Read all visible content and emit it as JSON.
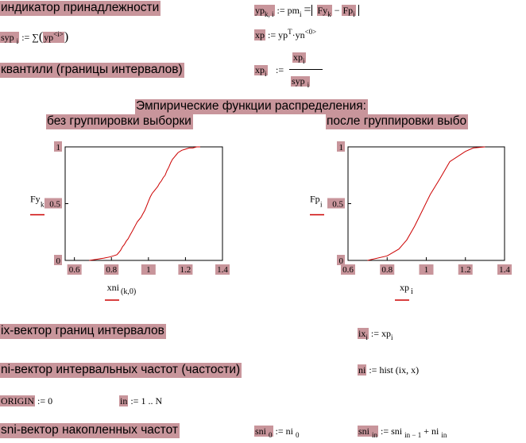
{
  "labels": {
    "indicator": "индикатор принадлежности",
    "quantiles": "квантили (границы интервалов)",
    "emp_title": "Эмпирические функции распределения:",
    "no_group": "без группировки выборки",
    "after_group": "после группировки выбо",
    "ix_vec": "ix-вектор границ интервалов",
    "ni_vec": "ni-вектор интервальных частот (частости)",
    "sni_vec": "sni-вектор накопленных частот"
  },
  "formulas": {
    "yp_name": "yp",
    "yp_sub": "k, i",
    "yp_rhs1": ":= pm",
    "yp_rhs_sub": "i",
    "yp_abs_a": "Fy",
    "yp_abs_a_sub": "k",
    "yp_minus": "−",
    "yp_abs_b": "Fp",
    "yp_abs_b_sub": "i",
    "syp_name": "syp",
    "syp_sub": "i",
    "syp_rhs": ":= ∑",
    "syp_arg": "yp",
    "syp_arg_sup": "<i>",
    "xp_name": "xp",
    "xp_rhs": ":= yp",
    "xp_sup": "T",
    "xp_rest": "·yn",
    "xp_rest_sup": "<0>",
    "xpi_name": "xp",
    "xpi_sub": "i",
    "xpi_assign": ":=",
    "xpi_num": "xp",
    "xpi_num_sub": "i",
    "xpi_den": "syp",
    "xpi_den_sub": "i",
    "ix_name": "ix",
    "ix_sub": "i",
    "ix_rhs": ":= xp",
    "ix_rhs_sub": "i",
    "ni_name": "ni",
    "ni_rhs": ":= hist",
    "ni_args": "(ix, x)",
    "origin_name": "ORIGIN",
    "origin_rhs": ":= 0",
    "in_name": "in",
    "in_rhs": ":= 1 .. N",
    "sni0_name": "sni",
    "sni0_sub": "0",
    "sni0_rhs": ":= ni",
    "sni0_rhs_sub": "0",
    "sniin_name": "sni",
    "sniin_sub": "in",
    "sniin_rhs": ":= sni",
    "sniin_rhs_sub": "in − 1",
    "sniin_plus": "+ ni",
    "sniin_plus_sub": "in"
  },
  "chart_data": [
    {
      "type": "line",
      "title": "",
      "xlabel": "xni",
      "xlabel_sub": "(k,0)",
      "ylabel": "Fy",
      "ylabel_sub": "k",
      "xlim": [
        0.55,
        1.4
      ],
      "ylim": [
        0,
        1
      ],
      "x_ticks": [
        "0.6",
        "0.8",
        "1",
        "1.2",
        "1.4"
      ],
      "y_ticks": [
        "0",
        "0.5",
        "1"
      ],
      "color": "#cc0000",
      "series": [
        {
          "x": [
            0.68,
            0.72,
            0.76,
            0.79,
            0.81,
            0.83,
            0.84,
            0.85,
            0.86,
            0.87,
            0.88,
            0.89,
            0.9,
            0.91,
            0.92,
            0.93,
            0.94,
            0.95,
            0.96,
            0.97,
            0.98,
            0.99,
            1.0,
            1.01,
            1.02,
            1.03,
            1.04,
            1.05,
            1.06,
            1.07,
            1.08,
            1.09,
            1.1,
            1.11,
            1.12,
            1.13,
            1.14,
            1.15,
            1.16,
            1.18,
            1.2,
            1.22,
            1.24,
            1.26,
            1.28
          ],
          "y": [
            0.0,
            0.01,
            0.02,
            0.03,
            0.04,
            0.05,
            0.07,
            0.09,
            0.12,
            0.14,
            0.17,
            0.19,
            0.22,
            0.25,
            0.28,
            0.31,
            0.34,
            0.36,
            0.38,
            0.41,
            0.44,
            0.48,
            0.52,
            0.56,
            0.59,
            0.61,
            0.63,
            0.65,
            0.68,
            0.7,
            0.73,
            0.75,
            0.79,
            0.82,
            0.86,
            0.89,
            0.91,
            0.93,
            0.95,
            0.97,
            0.98,
            0.99,
            0.99,
            1.0,
            1.0
          ]
        }
      ]
    },
    {
      "type": "line",
      "title": "",
      "xlabel": "xp",
      "xlabel_sub": "i",
      "ylabel": "Fp",
      "ylabel_sub": "i",
      "xlim": [
        0.6,
        1.4
      ],
      "ylim": [
        0,
        1
      ],
      "x_ticks": [
        "0.6",
        "0.8",
        "1",
        "1.2",
        "1.4"
      ],
      "y_ticks": [
        "0",
        "0.5",
        "1"
      ],
      "color": "#cc0000",
      "series": [
        {
          "x": [
            0.7,
            0.8,
            0.86,
            0.9,
            0.94,
            0.98,
            1.02,
            1.07,
            1.12,
            1.2,
            1.24,
            1.3
          ],
          "y": [
            0.0,
            0.04,
            0.1,
            0.18,
            0.3,
            0.44,
            0.58,
            0.72,
            0.87,
            0.96,
            0.99,
            1.0
          ]
        }
      ]
    }
  ]
}
